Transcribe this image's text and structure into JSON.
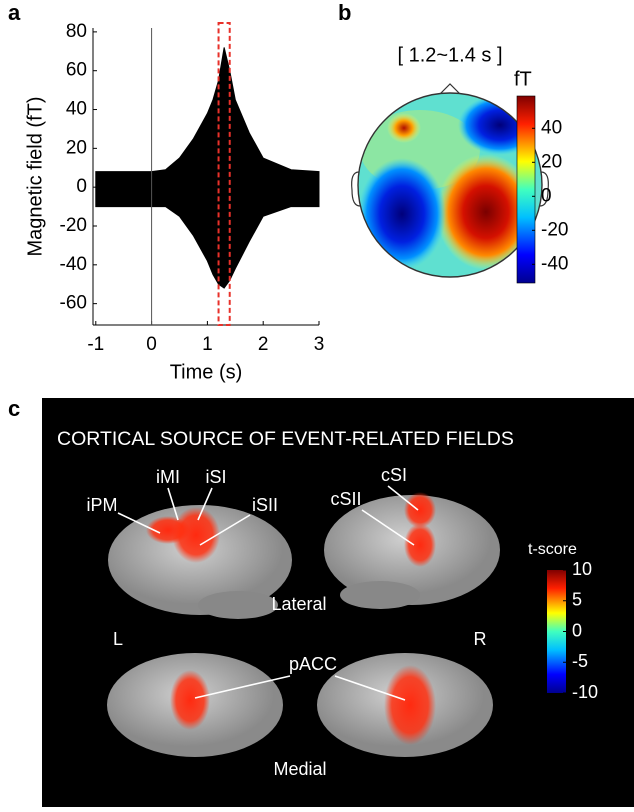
{
  "chart_data": [
    {
      "type": "area",
      "panel_label": "a",
      "ylabel": "Magnetic field (fT)",
      "xlabel": "Time (s)",
      "xlim": [
        -1.05,
        3
      ],
      "ylim": [
        -71,
        82
      ],
      "xticks": [
        -1,
        0,
        1,
        2,
        3
      ],
      "yticks": [
        -60,
        -40,
        -20,
        0,
        20,
        40,
        60,
        80
      ],
      "x": [
        -1,
        -0.5,
        0,
        0.25,
        0.5,
        0.75,
        1,
        1.1,
        1.2,
        1.3,
        1.4,
        1.5,
        1.75,
        2,
        2.5,
        3
      ],
      "series": [
        {
          "color": "#000000",
          "values": [
            8,
            8,
            8,
            9,
            15,
            25,
            38,
            45,
            55,
            72,
            60,
            45,
            28,
            15,
            9,
            8
          ]
        },
        {
          "color": "#000000",
          "values": [
            -10,
            -10,
            -10,
            -10,
            -15,
            -25,
            -38,
            -45,
            -50,
            -52,
            -48,
            -42,
            -28,
            -15,
            -10,
            -10
          ]
        }
      ],
      "vline": 0,
      "highlight": [
        1.2,
        1.4
      ],
      "highlight_color": "#e8312a"
    },
    {
      "type": "topomap",
      "panel_label": "b",
      "title": "[ 1.2~1.4 s ]",
      "colorbar_label": "fT",
      "clim": [
        -51,
        59
      ],
      "colorbar_ticks": [
        40,
        20,
        0,
        -20,
        -40
      ]
    }
  ],
  "panel_c": {
    "panel_label": "c",
    "title": "CORTICAL SOURCE OF EVENT-RELATED FIELDS",
    "labels": [
      "iPM",
      "iMI",
      "iSI",
      "iSII",
      "cSI",
      "cSII",
      "Lateral",
      "L",
      "R",
      "pACC",
      "Medial"
    ],
    "colorbar_label": "t-score",
    "clim": [
      -10,
      10
    ],
    "colorbar_ticks": [
      10,
      5,
      0,
      -5,
      -10
    ]
  }
}
